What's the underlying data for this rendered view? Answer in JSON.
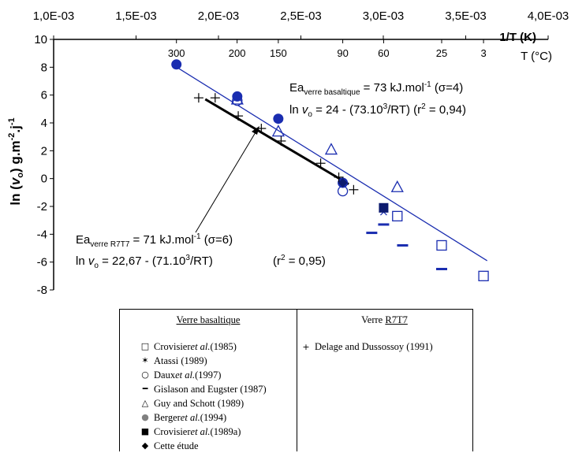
{
  "chart_data": {
    "type": "scatter",
    "top_axis": {
      "label": "1/T (K)",
      "ticks": [
        "1,0E-03",
        "1,5E-03",
        "2,0E-03",
        "2,5E-03",
        "3,0E-03",
        "3,5E-03",
        "4,0E-03"
      ],
      "range": [
        0.001,
        0.004
      ]
    },
    "temp_axis": {
      "label": "T (°C)",
      "ticks": [
        {
          "label": "300",
          "inv_t": 0.001745
        },
        {
          "label": "200",
          "inv_t": 0.002113
        },
        {
          "label": "150",
          "inv_t": 0.002363
        },
        {
          "label": "90",
          "inv_t": 0.002754
        },
        {
          "label": "60",
          "inv_t": 0.003002
        },
        {
          "label": "25",
          "inv_t": 0.003354
        },
        {
          "label": "3",
          "inv_t": 0.003608
        }
      ]
    },
    "y_axis": {
      "label_parts": {
        "a": "ln (",
        "v": "v",
        "sub": "o",
        "b": ") g.m",
        "sup1": "-2",
        "c": ".j",
        "sup2": "-1"
      },
      "ticks": [
        10,
        8,
        6,
        4,
        2,
        0,
        -2,
        -4,
        -6,
        -8
      ],
      "range": [
        -8,
        10
      ]
    },
    "grid": false,
    "series": [
      {
        "key": "crovisier1985",
        "color": "#1a2db0",
        "points": [
          [
            0.003085,
            -2.7
          ],
          [
            0.003354,
            -4.8
          ],
          [
            0.003608,
            -7.0
          ]
        ]
      },
      {
        "key": "atassi",
        "color": "#1a2db0",
        "points": [
          [
            0.003002,
            -2.4
          ]
        ]
      },
      {
        "key": "daux",
        "color": "#1a2db0",
        "points": [
          [
            0.002114,
            5.6
          ],
          [
            0.002754,
            -0.9
          ]
        ]
      },
      {
        "key": "gislason",
        "color": "#1a2db0",
        "points": [
          [
            0.00293,
            -3.9
          ],
          [
            0.003002,
            -3.3
          ],
          [
            0.003117,
            -4.8
          ],
          [
            0.003354,
            -6.5
          ]
        ]
      },
      {
        "key": "guy_schott",
        "color": "#1a2db0",
        "points": [
          [
            0.002114,
            5.7
          ],
          [
            0.002363,
            3.4
          ],
          [
            0.002684,
            2.1
          ],
          [
            0.003085,
            -0.6
          ]
        ]
      },
      {
        "key": "berger",
        "color": "#1a2db0",
        "points": [
          [
            0.002754,
            -0.3
          ]
        ]
      },
      {
        "key": "crovisier1989",
        "color": "#1a2db0",
        "points": [
          [
            0.003002,
            -2.1
          ]
        ]
      },
      {
        "key": "cette_etude",
        "color": "#1a2db0",
        "points": [
          [
            0.001745,
            8.2
          ],
          [
            0.002114,
            5.9
          ],
          [
            0.002363,
            4.3
          ],
          [
            0.002754,
            -0.3
          ]
        ]
      },
      {
        "key": "delage",
        "color": "#000000",
        "points": [
          [
            0.00188,
            5.8
          ],
          [
            0.00198,
            5.8
          ],
          [
            0.00212,
            4.5
          ],
          [
            0.00226,
            3.6
          ],
          [
            0.00238,
            2.7
          ],
          [
            0.00262,
            1.1
          ],
          [
            0.00273,
            0.1
          ],
          [
            0.00282,
            -0.8
          ]
        ]
      }
    ],
    "fit_lines": [
      {
        "key": "basaltique",
        "color": "#1a2db0",
        "from": [
          0.00172,
          8.2
        ],
        "to": [
          0.00363,
          -5.9
        ]
      },
      {
        "key": "r7t7",
        "color": "#000000",
        "from": [
          0.00192,
          5.7
        ],
        "to": [
          0.00279,
          -0.4
        ]
      }
    ],
    "annotations": {
      "basaltique": {
        "ea_prefix": "Ea",
        "ea_sub": "verre basaltique",
        "ea_value": " = 73 kJ.mol",
        "ea_sup": "-1",
        "ea_sigma": " (σ=4)",
        "ln_prefix": "ln ",
        "ln_v": "v",
        "ln_sub": "o",
        "ln_eq": " = 24 - (73.10",
        "ln_sup": "3",
        "ln_rt": "/RT)  (r",
        "ln_r2sup": "2",
        "ln_r2": " = 0,94)"
      },
      "r7t7": {
        "ea_prefix": "Ea",
        "ea_sub": "verre R7T7",
        "ea_value": " = 71 kJ.mol",
        "ea_sup": "-1",
        "ea_sigma": " (σ=6)",
        "ln_prefix": "ln ",
        "ln_v": "v",
        "ln_sub": "o",
        "ln_eq": " = 22,67 - (71.10",
        "ln_sup": "3",
        "ln_rt": "/RT)",
        "ln_r2a": "(r",
        "ln_r2sup": "2",
        "ln_r2": " = 0,95)"
      }
    }
  },
  "legend": {
    "left_header": "Verre basaltique",
    "right_header_prefix": "Verre ",
    "right_header_underlined": "R7T7",
    "items": [
      {
        "symbol": "□",
        "text_a": "Crovisier ",
        "text_i": "et al.",
        "text_b": " (1985)"
      },
      {
        "symbol": "✶",
        "text_a": "Atassi (1989)",
        "text_i": "",
        "text_b": ""
      },
      {
        "symbol": "○",
        "text_a": "Daux ",
        "text_i": "et al.",
        "text_b": " (1997)"
      },
      {
        "symbol": "━",
        "text_a": "Gislason and Eugster (1987)",
        "text_i": "",
        "text_b": ""
      },
      {
        "symbol": "△",
        "text_a": "Guy and Schott (1989)",
        "text_i": "",
        "text_b": ""
      },
      {
        "symbol": "●",
        "text_a": "Berger ",
        "text_i": "et al.",
        "text_b": " (1994)"
      },
      {
        "symbol": "■",
        "text_a": "Crovisier ",
        "text_i": "et al.",
        "text_b": " (1989a)"
      },
      {
        "symbol": "◆",
        "text_a": "Cette étude",
        "text_i": "",
        "text_b": ""
      }
    ],
    "right_item": {
      "symbol": "+",
      "text": "Delage and Dussossoy (1991)"
    }
  }
}
